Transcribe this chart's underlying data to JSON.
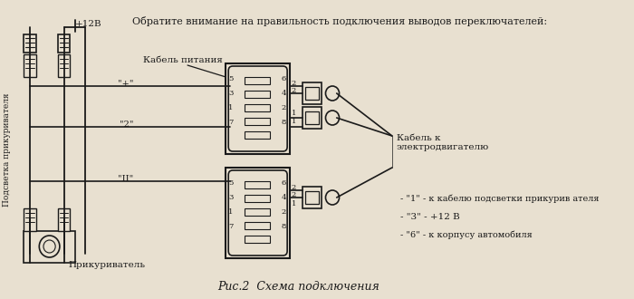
{
  "title": "Рис.2  Схема подключения",
  "top_note": "Обратите внимание на правильность подключения выводов переключателей:",
  "label_power_cable": "Кабель питания",
  "label_motor_cable": "Кабель к\nэлектродвигателю",
  "label_lighter": "Прикуриватель",
  "label_backlight": "Подсветка прикуривателя",
  "label_plus12v": "+12В",
  "legend_1": "- \"1\" - к кабелю подсветки прикурив ателя",
  "legend_3": "- \"3\" - +12 В",
  "legend_6": "- \"6\" - к корпусу автомобиля",
  "label_plus": "\"+\"",
  "label_2": "\"2\"",
  "label_II": "\"II\"",
  "bg_color": "#e8e0d0",
  "line_color": "#1a1a1a",
  "text_color": "#1a1a1a"
}
